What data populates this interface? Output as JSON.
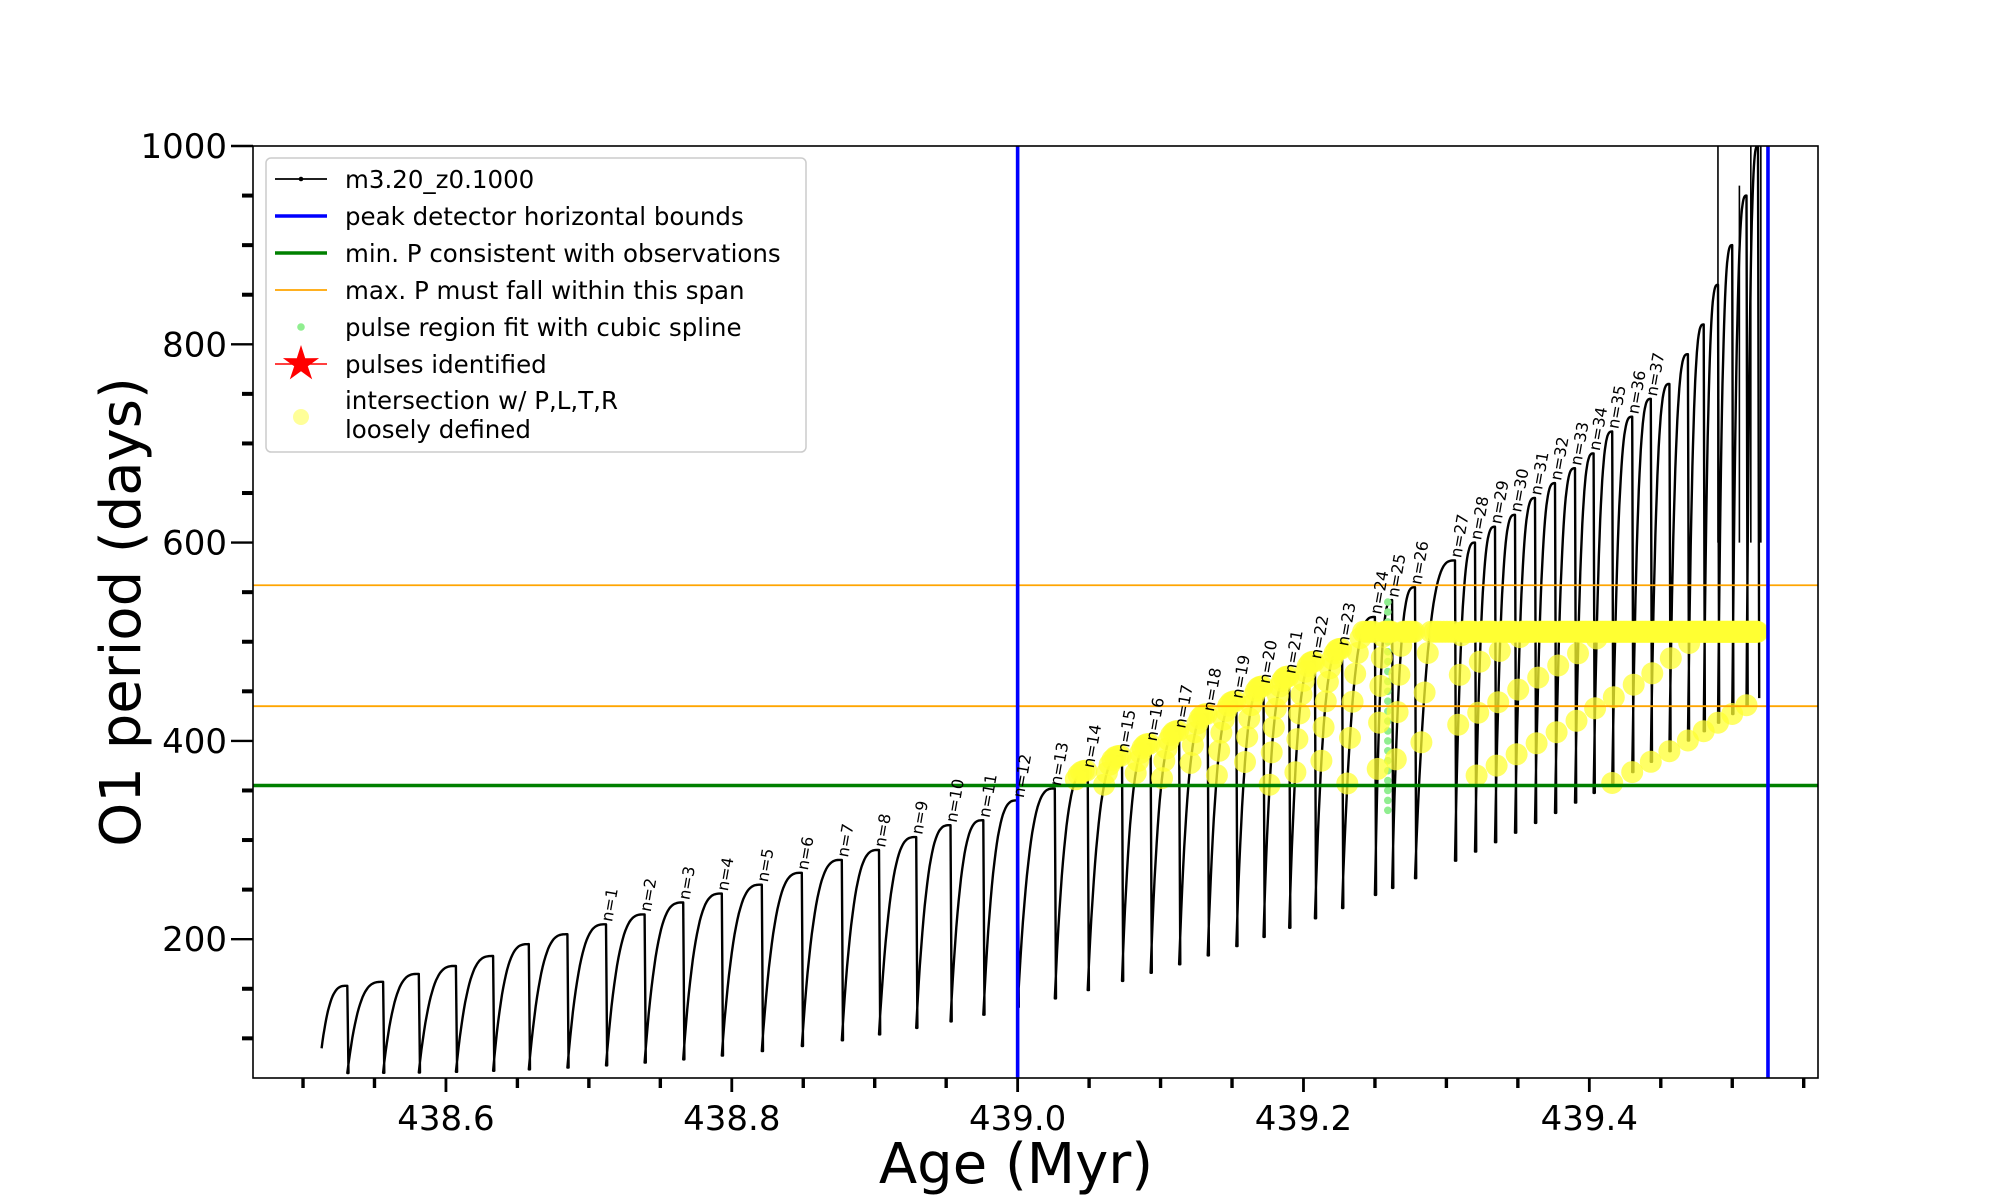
{
  "chart_data": {
    "type": "line",
    "title": "",
    "xlabel": "Age (Myr)",
    "ylabel": "O1 period (days)",
    "xlim": [
      438.465,
      439.56
    ],
    "ylim": [
      60,
      1000
    ],
    "x_ticks": [
      438.6,
      438.8,
      439.0,
      439.2,
      439.4
    ],
    "x_tick_labels": [
      "438.6",
      "438.8",
      "439.0",
      "439.2",
      "439.4"
    ],
    "y_ticks": [
      200,
      400,
      600,
      800,
      1000
    ],
    "y_tick_labels": [
      "200",
      "400",
      "600",
      "800",
      "1000"
    ],
    "grid": false,
    "legend_position": "top-left",
    "legend": [
      {
        "label": "m3.20_z0.1000",
        "style": "line-marker",
        "color": "#000000"
      },
      {
        "label": "peak detector horizontal bounds",
        "style": "line",
        "color": "#0000ff"
      },
      {
        "label": "min. P consistent with observations",
        "style": "line",
        "color": "#008000"
      },
      {
        "label": "max. P must fall within this span",
        "style": "line",
        "color": "#ffa500"
      },
      {
        "label": "pulse region fit with cubic spline",
        "style": "dot",
        "color": "#90ee90"
      },
      {
        "label": "pulses identified",
        "style": "star",
        "color": "#ff0000"
      },
      {
        "label": "intersection w/ P,L,T,R",
        "label2": "loosely defined",
        "style": "dot",
        "color": "#ffff99"
      }
    ],
    "vertical_bounds": [
      439.0,
      439.525
    ],
    "min_period": 355,
    "max_period_span": [
      435,
      557
    ],
    "pulses": [
      {
        "n": 1,
        "age": 438.712,
        "peak": 215,
        "label": "n=1"
      },
      {
        "n": 2,
        "age": 438.739,
        "peak": 225,
        "label": "n=2"
      },
      {
        "n": 3,
        "age": 438.766,
        "peak": 237,
        "label": "n=3"
      },
      {
        "n": 4,
        "age": 438.793,
        "peak": 246,
        "label": "n=4"
      },
      {
        "n": 5,
        "age": 438.821,
        "peak": 255,
        "label": "n=5"
      },
      {
        "n": 6,
        "age": 438.849,
        "peak": 267,
        "label": "n=6"
      },
      {
        "n": 7,
        "age": 438.877,
        "peak": 280,
        "label": "n=7"
      },
      {
        "n": 8,
        "age": 438.903,
        "peak": 290,
        "label": "n=8"
      },
      {
        "n": 9,
        "age": 438.929,
        "peak": 303,
        "label": "n=9"
      },
      {
        "n": 10,
        "age": 438.953,
        "peak": 315,
        "label": "n=10"
      },
      {
        "n": 11,
        "age": 438.976,
        "peak": 320,
        "label": "n=11"
      },
      {
        "n": 12,
        "age": 439.0,
        "peak": 340,
        "label": "n=12"
      },
      {
        "n": 13,
        "age": 439.026,
        "peak": 352,
        "label": "n=13"
      },
      {
        "n": 14,
        "age": 439.049,
        "peak": 370,
        "label": "n=14"
      },
      {
        "n": 15,
        "age": 439.073,
        "peak": 385,
        "label": "n=15"
      },
      {
        "n": 16,
        "age": 439.093,
        "peak": 397,
        "label": "n=16"
      },
      {
        "n": 17,
        "age": 439.113,
        "peak": 410,
        "label": "n=17"
      },
      {
        "n": 18,
        "age": 439.133,
        "peak": 427,
        "label": "n=18"
      },
      {
        "n": 19,
        "age": 439.153,
        "peak": 440,
        "label": "n=19"
      },
      {
        "n": 20,
        "age": 439.172,
        "peak": 455,
        "label": "n=20"
      },
      {
        "n": 21,
        "age": 439.19,
        "peak": 465,
        "label": "n=21"
      },
      {
        "n": 22,
        "age": 439.208,
        "peak": 480,
        "label": "n=22"
      },
      {
        "n": 23,
        "age": 439.227,
        "peak": 493,
        "label": "n=23"
      },
      {
        "n": 24,
        "age": 439.25,
        "peak": 525,
        "label": "n=24"
      },
      {
        "n": 25,
        "age": 439.262,
        "peak": 542,
        "label": "n=25"
      },
      {
        "n": 26,
        "age": 439.278,
        "peak": 555,
        "label": "n=26"
      },
      {
        "n": 27,
        "age": 439.306,
        "peak": 582,
        "label": "n=27"
      },
      {
        "n": 28,
        "age": 439.32,
        "peak": 600,
        "label": "n=28"
      },
      {
        "n": 29,
        "age": 439.334,
        "peak": 616,
        "label": "n=29"
      },
      {
        "n": 30,
        "age": 439.348,
        "peak": 628,
        "label": "n=30"
      },
      {
        "n": 31,
        "age": 439.362,
        "peak": 645,
        "label": "n=31"
      },
      {
        "n": 32,
        "age": 439.376,
        "peak": 660,
        "label": "n=32"
      },
      {
        "n": 33,
        "age": 439.39,
        "peak": 675,
        "label": "n=33"
      },
      {
        "n": 34,
        "age": 439.403,
        "peak": 690,
        "label": "n=34"
      },
      {
        "n": 35,
        "age": 439.416,
        "peak": 712,
        "label": "n=35"
      },
      {
        "n": 36,
        "age": 439.43,
        "peak": 727,
        "label": "n=36"
      },
      {
        "n": 37,
        "age": 439.443,
        "peak": 745,
        "label": "n=37"
      }
    ],
    "early_pulses": [
      {
        "age": 438.531,
        "peak": 153
      },
      {
        "age": 438.556,
        "peak": 157
      },
      {
        "age": 438.581,
        "peak": 165
      },
      {
        "age": 438.607,
        "peak": 173
      },
      {
        "age": 438.633,
        "peak": 183
      },
      {
        "age": 438.658,
        "peak": 195
      },
      {
        "age": 438.685,
        "peak": 205
      }
    ],
    "late_pulses": [
      {
        "age": 439.456,
        "peak": 760
      },
      {
        "age": 439.469,
        "peak": 790
      },
      {
        "age": 439.48,
        "peak": 820
      },
      {
        "age": 439.49,
        "peak": 860
      },
      {
        "age": 439.5,
        "peak": 900
      },
      {
        "age": 439.51,
        "peak": 950
      },
      {
        "age": 439.518,
        "peak": 1000
      }
    ]
  }
}
